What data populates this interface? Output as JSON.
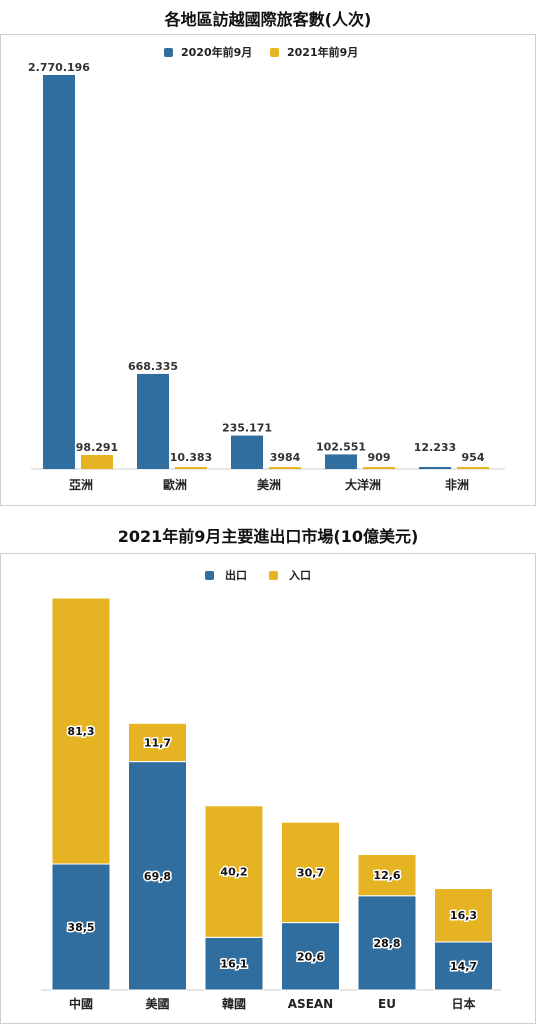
{
  "colors": {
    "export_blue": "#2f6e9e",
    "import_gold": "#e6b422"
  },
  "chart1": {
    "title": "各地區訪越國際旅客數(人次)",
    "legend": [
      "2020年前9月",
      "2021年前9月"
    ],
    "axis_labels": [
      "亞洲",
      "歐洲",
      "美洲",
      "大洋洲",
      "非洲"
    ],
    "label_series": [
      [
        "2.770.196",
        "668.335",
        "235.171",
        "102.551",
        "12.233"
      ],
      [
        "98.291",
        "10.383",
        "3984",
        "909",
        "954"
      ]
    ]
  },
  "chart2": {
    "title": "2021年前9月主要進出口市場(10億美元)",
    "legend": [
      "出口",
      "入口"
    ],
    "axis_labels": [
      "中國",
      "美國",
      "韓國",
      "ASEAN",
      "EU",
      "日本"
    ],
    "label_series": [
      [
        "38,5",
        "69,8",
        "16,1",
        "20,6",
        "28,8",
        "14,7"
      ],
      [
        "81,3",
        "11,7",
        "40,2",
        "30,7",
        "12,6",
        "16,3"
      ]
    ]
  },
  "chart_data": [
    {
      "type": "bar",
      "title": "各地區訪越國際旅客數(人次)",
      "categories": [
        "亞洲",
        "歐洲",
        "美洲",
        "大洋洲",
        "非洲"
      ],
      "series": [
        {
          "name": "2020年前9月",
          "values": [
            2770196,
            668335,
            235171,
            102551,
            12233
          ],
          "labels": [
            "2.770.196",
            "668.335",
            "235.171",
            "102.551",
            "12.233"
          ]
        },
        {
          "name": "2021年前9月",
          "values": [
            98291,
            10383,
            3984,
            909,
            954
          ],
          "labels": [
            "98.291",
            "10.383",
            "3984",
            "909",
            "954"
          ]
        }
      ],
      "ylim": [
        0,
        2770196
      ],
      "legend_position": "top",
      "grid": false
    },
    {
      "type": "bar",
      "stacked": true,
      "title": "2021年前9月主要進出口市場(10億美元)",
      "categories": [
        "中國",
        "美國",
        "韓國",
        "ASEAN",
        "EU",
        "日本"
      ],
      "series": [
        {
          "name": "出口",
          "values": [
            38.5,
            69.8,
            16.1,
            20.6,
            28.8,
            14.7
          ],
          "labels": [
            "38,5",
            "69,8",
            "16,1",
            "20,6",
            "28,8",
            "14,7"
          ]
        },
        {
          "name": "入口",
          "values": [
            81.3,
            11.7,
            40.2,
            30.7,
            12.6,
            16.3
          ],
          "labels": [
            "81,3",
            "11,7",
            "40,2",
            "30,7",
            "12,6",
            "16,3"
          ]
        }
      ],
      "ylim": [
        0,
        120
      ],
      "legend_position": "top",
      "grid": false
    }
  ]
}
